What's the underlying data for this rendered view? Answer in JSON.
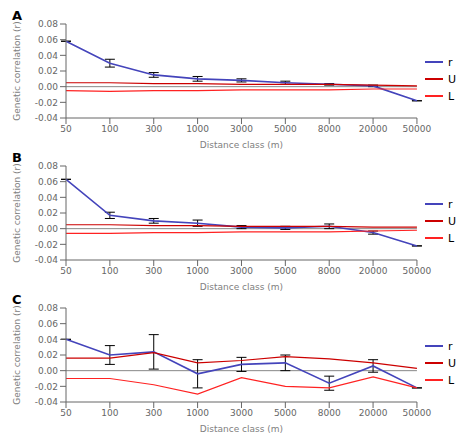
{
  "chart_data": [
    {
      "type": "line",
      "title": "A",
      "xlabel": "Distance class (m)",
      "ylabel": "Genetic correlation (r)",
      "categories": [
        "50",
        "100",
        "300",
        "1000",
        "3000",
        "5000",
        "8000",
        "20000",
        "50000"
      ],
      "series": [
        {
          "name": "r",
          "color": "#4444bb",
          "values": [
            0.058,
            0.03,
            0.015,
            0.01,
            0.008,
            0.005,
            0.003,
            0.001,
            -0.018
          ],
          "error_upper": [
            0.0,
            0.005,
            0.003,
            0.003,
            0.002,
            0.002,
            0.001,
            0.001,
            0.0
          ],
          "error_lower": [
            0.0,
            0.005,
            0.003,
            0.003,
            0.002,
            0.002,
            0.001,
            0.001,
            0.0
          ]
        },
        {
          "name": "U",
          "color": "#cc0000",
          "values": [
            0.005,
            0.005,
            0.004,
            0.004,
            0.003,
            0.003,
            0.003,
            0.002,
            0.001
          ]
        },
        {
          "name": "L",
          "color": "#ff2222",
          "values": [
            -0.005,
            -0.006,
            -0.005,
            -0.005,
            -0.004,
            -0.004,
            -0.004,
            -0.003,
            -0.003
          ]
        }
      ],
      "reference_lines": [
        {
          "y": 0,
          "color": "#888888"
        }
      ],
      "ylim": [
        -0.04,
        0.08
      ],
      "yticks": [
        -0.04,
        -0.02,
        {
          "value": 0,
          "label": "0.00"
        },
        0.02,
        0.04,
        0.06,
        0.08
      ],
      "grid": false,
      "legend": "right"
    },
    {
      "type": "line",
      "title": "B",
      "xlabel": "Distance class (m)",
      "ylabel": "Genetic correlation (r)",
      "categories": [
        "50",
        "100",
        "300",
        "1000",
        "3000",
        "5000",
        "8000",
        "20000",
        "50000"
      ],
      "series": [
        {
          "name": "r",
          "color": "#4444bb",
          "values": [
            0.063,
            0.017,
            0.01,
            0.007,
            0.002,
            0.001,
            0.003,
            -0.005,
            -0.022
          ],
          "error_upper": [
            0.0,
            0.004,
            0.003,
            0.004,
            0.002,
            0.002,
            0.003,
            0.002,
            0.0
          ],
          "error_lower": [
            0.0,
            0.004,
            0.003,
            0.004,
            0.002,
            0.002,
            0.003,
            0.002,
            0.0
          ]
        },
        {
          "name": "U",
          "color": "#cc0000",
          "values": [
            0.005,
            0.005,
            0.004,
            0.004,
            0.003,
            0.003,
            0.003,
            0.002,
            0.002
          ]
        },
        {
          "name": "L",
          "color": "#ff2222",
          "values": [
            -0.006,
            -0.006,
            -0.005,
            -0.005,
            -0.004,
            -0.004,
            -0.004,
            -0.003,
            -0.002
          ]
        }
      ],
      "reference_lines": [
        {
          "y": 0,
          "color": "#888888"
        }
      ],
      "ylim": [
        -0.04,
        0.08
      ],
      "yticks": [
        -0.04,
        -0.02,
        {
          "value": 0,
          "label": "0.00"
        },
        0.02,
        0.04,
        0.06,
        0.08
      ],
      "grid": false,
      "legend": "right"
    },
    {
      "type": "line",
      "title": "C",
      "xlabel": "Distance class (m)",
      "ylabel": "Genetic correlation (r)",
      "categories": [
        "50",
        "100",
        "300",
        "1000",
        "3000",
        "5000",
        "8000",
        "20000",
        "50000"
      ],
      "series": [
        {
          "name": "r",
          "color": "#4444bb",
          "values": [
            0.04,
            0.02,
            0.024,
            -0.004,
            0.008,
            0.01,
            -0.016,
            0.006,
            -0.022
          ],
          "error_upper": [
            0.0,
            0.012,
            0.022,
            0.018,
            0.009,
            0.01,
            0.009,
            0.008,
            0.0
          ],
          "error_lower": [
            0.0,
            0.012,
            0.022,
            0.018,
            0.009,
            0.01,
            0.009,
            0.008,
            0.0
          ]
        },
        {
          "name": "U",
          "color": "#cc0000",
          "values": [
            0.016,
            0.016,
            0.023,
            0.01,
            0.013,
            0.018,
            0.015,
            0.01,
            0.003
          ]
        },
        {
          "name": "L",
          "color": "#ff2222",
          "values": [
            -0.01,
            -0.01,
            -0.018,
            -0.03,
            -0.009,
            -0.02,
            -0.022,
            -0.008,
            -0.022
          ]
        }
      ],
      "reference_lines": [
        {
          "y": 0,
          "color": "#888888"
        }
      ],
      "ylim": [
        -0.04,
        0.08
      ],
      "yticks": [
        -0.04,
        -0.02,
        {
          "value": 0,
          "label": "0.00"
        },
        0.02,
        0.04,
        0.06,
        0.08
      ],
      "grid": false,
      "legend": "right"
    }
  ]
}
